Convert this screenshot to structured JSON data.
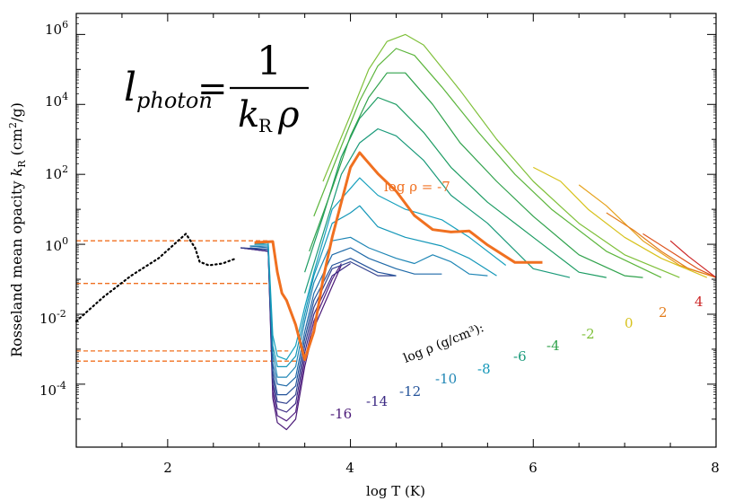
{
  "chart_data": {
    "type": "line",
    "xlabel": "log T (K)",
    "ylabel_parts": [
      "Rosseland mean opacity ",
      "k",
      "R",
      " (cm",
      "2",
      "/g)"
    ],
    "x_ticks": [
      "2",
      "4",
      "6",
      "8"
    ],
    "y_ticks": [
      {
        "base": "10",
        "exp": "6"
      },
      {
        "base": "10",
        "exp": "4"
      },
      {
        "base": "10",
        "exp": "2"
      },
      {
        "base": "10",
        "exp": "0"
      },
      {
        "base": "10",
        "exp": "-2"
      },
      {
        "base": "10",
        "exp": "-4"
      }
    ],
    "xlim": [
      1,
      8
    ],
    "ylim_log10": [
      -5.8,
      6.6
    ],
    "formula": {
      "lhs": "l",
      "lhs_sub": "photon",
      "eq": "=",
      "num": "1",
      "den_k": "k",
      "den_sub": "R",
      "den_rho": "ρ"
    },
    "highlight_label": "log ρ = -7",
    "legend_title": "log ρ (g/cm³):",
    "density_labels": [
      {
        "text": "-16",
        "color": "#4b1a78"
      },
      {
        "text": "-14",
        "color": "#3c2a84"
      },
      {
        "text": "-12",
        "color": "#24539a"
      },
      {
        "text": "-10",
        "color": "#1f86b5"
      },
      {
        "text": "-8",
        "color": "#1497b8"
      },
      {
        "text": "-6",
        "color": "#1a9a7a"
      },
      {
        "text": "-4",
        "color": "#30a24c"
      },
      {
        "text": "-2",
        "color": "#7fc03a"
      },
      {
        "text": "0",
        "color": "#d7c21d"
      },
      {
        "text": "2",
        "color": "#e37d1c"
      },
      {
        "text": "4",
        "color": "#cc2727"
      }
    ],
    "highlight_series": {
      "name": "log ρ = -7",
      "color": "#f07020",
      "points": [
        [
          2.95,
          0.05
        ],
        [
          3.15,
          0.08
        ],
        [
          3.2,
          -0.8
        ],
        [
          3.25,
          -1.4
        ],
        [
          3.3,
          -1.6
        ],
        [
          3.4,
          -2.3
        ],
        [
          3.5,
          -3.3
        ],
        [
          3.6,
          -2.5
        ],
        [
          3.7,
          -1.0
        ],
        [
          3.8,
          0.2
        ],
        [
          3.9,
          1.2
        ],
        [
          4.0,
          2.2
        ],
        [
          4.1,
          2.62
        ],
        [
          4.2,
          2.32
        ],
        [
          4.3,
          2.02
        ],
        [
          4.5,
          1.52
        ],
        [
          4.7,
          0.82
        ],
        [
          4.9,
          0.42
        ],
        [
          5.1,
          0.35
        ],
        [
          5.3,
          0.38
        ],
        [
          5.5,
          -0.02
        ],
        [
          5.8,
          -0.52
        ],
        [
          6.1,
          -0.52
        ]
      ]
    },
    "series": [
      {
        "name": "-16",
        "color": "#4b1a78",
        "points": [
          [
            2.8,
            -0.1
          ],
          [
            3.1,
            -0.2
          ],
          [
            3.15,
            -4.4
          ],
          [
            3.2,
            -5.1
          ],
          [
            3.3,
            -5.3
          ],
          [
            3.4,
            -5.0
          ],
          [
            3.5,
            -3.5
          ],
          [
            3.6,
            -2.4
          ],
          [
            3.8,
            -1.2
          ],
          [
            3.9,
            -0.6
          ]
        ]
      },
      {
        "name": "-15",
        "color": "#522183",
        "points": [
          [
            2.8,
            -0.1
          ],
          [
            3.1,
            -0.2
          ],
          [
            3.15,
            -4.2
          ],
          [
            3.2,
            -4.9
          ],
          [
            3.3,
            -5.05
          ],
          [
            3.4,
            -4.8
          ],
          [
            3.5,
            -3.3
          ],
          [
            3.6,
            -2.2
          ],
          [
            3.8,
            -1.0
          ],
          [
            3.9,
            -0.55
          ]
        ]
      },
      {
        "name": "-14",
        "color": "#3c2a84",
        "points": [
          [
            2.8,
            -0.1
          ],
          [
            3.1,
            -0.2
          ],
          [
            3.15,
            -4.0
          ],
          [
            3.2,
            -4.7
          ],
          [
            3.3,
            -4.8
          ],
          [
            3.4,
            -4.55
          ],
          [
            3.5,
            -3.1
          ],
          [
            3.6,
            -2.0
          ],
          [
            3.8,
            -0.9
          ],
          [
            4.0,
            -0.55
          ]
        ]
      },
      {
        "name": "-13",
        "color": "#32428f",
        "points": [
          [
            2.8,
            -0.1
          ],
          [
            3.1,
            -0.15
          ],
          [
            3.15,
            -3.8
          ],
          [
            3.2,
            -4.5
          ],
          [
            3.3,
            -4.55
          ],
          [
            3.4,
            -4.3
          ],
          [
            3.5,
            -2.9
          ],
          [
            3.6,
            -1.8
          ],
          [
            3.8,
            -0.7
          ],
          [
            4.0,
            -0.5
          ],
          [
            4.3,
            -0.9
          ],
          [
            4.5,
            -0.9
          ]
        ]
      },
      {
        "name": "-12",
        "color": "#24539a",
        "points": [
          [
            2.9,
            -0.1
          ],
          [
            3.1,
            -0.15
          ],
          [
            3.15,
            -3.6
          ],
          [
            3.2,
            -4.3
          ],
          [
            3.3,
            -4.3
          ],
          [
            3.4,
            -4.05
          ],
          [
            3.5,
            -2.7
          ],
          [
            3.6,
            -1.6
          ],
          [
            3.8,
            -0.6
          ],
          [
            4.0,
            -0.4
          ],
          [
            4.3,
            -0.8
          ],
          [
            4.5,
            -0.9
          ]
        ]
      },
      {
        "name": "-11",
        "color": "#1f6aa8",
        "points": [
          [
            2.9,
            -0.05
          ],
          [
            3.1,
            -0.1
          ],
          [
            3.15,
            -3.4
          ],
          [
            3.2,
            -4.0
          ],
          [
            3.3,
            -4.05
          ],
          [
            3.4,
            -3.8
          ],
          [
            3.5,
            -2.5
          ],
          [
            3.6,
            -1.4
          ],
          [
            3.8,
            -0.3
          ],
          [
            4.0,
            -0.1
          ],
          [
            4.2,
            -0.4
          ],
          [
            4.5,
            -0.7
          ],
          [
            4.7,
            -0.85
          ],
          [
            5.0,
            -0.85
          ]
        ]
      },
      {
        "name": "-10",
        "color": "#1f86b5",
        "points": [
          [
            2.9,
            -0.05
          ],
          [
            3.1,
            -0.05
          ],
          [
            3.15,
            -3.1
          ],
          [
            3.2,
            -3.8
          ],
          [
            3.3,
            -3.8
          ],
          [
            3.4,
            -3.5
          ],
          [
            3.5,
            -2.2
          ],
          [
            3.6,
            -1.1
          ],
          [
            3.8,
            0.1
          ],
          [
            4.0,
            0.2
          ],
          [
            4.2,
            -0.1
          ],
          [
            4.5,
            -0.4
          ],
          [
            4.7,
            -0.55
          ],
          [
            4.9,
            -0.3
          ],
          [
            5.1,
            -0.5
          ],
          [
            5.3,
            -0.85
          ],
          [
            5.5,
            -0.9
          ]
        ]
      },
      {
        "name": "-9",
        "color": "#1497b8",
        "points": [
          [
            2.95,
            0.0
          ],
          [
            3.1,
            0.0
          ],
          [
            3.15,
            -2.9
          ],
          [
            3.2,
            -3.5
          ],
          [
            3.3,
            -3.5
          ],
          [
            3.4,
            -3.2
          ],
          [
            3.5,
            -2.0
          ],
          [
            3.6,
            -0.9
          ],
          [
            3.8,
            0.6
          ],
          [
            4.0,
            0.9
          ],
          [
            4.1,
            1.1
          ],
          [
            4.3,
            0.5
          ],
          [
            4.6,
            0.2
          ],
          [
            5.0,
            -0.05
          ],
          [
            5.3,
            -0.4
          ],
          [
            5.6,
            -0.9
          ]
        ]
      },
      {
        "name": "-8",
        "color": "#17a0bd",
        "points": [
          [
            2.95,
            0.0
          ],
          [
            3.1,
            0.05
          ],
          [
            3.15,
            -2.6
          ],
          [
            3.2,
            -3.2
          ],
          [
            3.3,
            -3.3
          ],
          [
            3.4,
            -2.9
          ],
          [
            3.5,
            -1.8
          ],
          [
            3.6,
            -0.8
          ],
          [
            3.8,
            1.0
          ],
          [
            4.0,
            1.6
          ],
          [
            4.1,
            1.9
          ],
          [
            4.3,
            1.4
          ],
          [
            4.6,
            1.0
          ],
          [
            5.0,
            0.7
          ],
          [
            5.3,
            0.2
          ],
          [
            5.7,
            -0.6
          ]
        ]
      },
      {
        "name": "-6",
        "color": "#1a9a7a",
        "points": [
          [
            3.5,
            -1.4
          ],
          [
            3.7,
            0.3
          ],
          [
            3.9,
            2.0
          ],
          [
            4.1,
            2.9
          ],
          [
            4.3,
            3.3
          ],
          [
            4.5,
            3.1
          ],
          [
            4.8,
            2.4
          ],
          [
            5.1,
            1.4
          ],
          [
            5.5,
            0.6
          ],
          [
            6.0,
            -0.7
          ],
          [
            6.4,
            -0.95
          ]
        ]
      },
      {
        "name": "-5",
        "color": "#1c9c62",
        "points": [
          [
            3.5,
            -0.8
          ],
          [
            3.7,
            0.8
          ],
          [
            3.9,
            2.5
          ],
          [
            4.1,
            3.6
          ],
          [
            4.3,
            4.2
          ],
          [
            4.5,
            4.0
          ],
          [
            4.8,
            3.2
          ],
          [
            5.1,
            2.2
          ],
          [
            5.5,
            1.2
          ],
          [
            6.0,
            0.2
          ],
          [
            6.5,
            -0.8
          ],
          [
            6.8,
            -0.95
          ]
        ]
      },
      {
        "name": "-4",
        "color": "#30a24c",
        "points": [
          [
            3.55,
            -0.2
          ],
          [
            3.8,
            1.6
          ],
          [
            4.0,
            3.1
          ],
          [
            4.2,
            4.2
          ],
          [
            4.4,
            4.9
          ],
          [
            4.6,
            4.9
          ],
          [
            4.9,
            4.0
          ],
          [
            5.2,
            2.9
          ],
          [
            5.6,
            1.8
          ],
          [
            6.0,
            0.8
          ],
          [
            6.5,
            -0.3
          ],
          [
            7.0,
            -0.9
          ],
          [
            7.2,
            -0.95
          ]
        ]
      },
      {
        "name": "-3",
        "color": "#5cb53c",
        "points": [
          [
            3.6,
            0.8
          ],
          [
            3.9,
            2.8
          ],
          [
            4.1,
            4.1
          ],
          [
            4.3,
            5.1
          ],
          [
            4.5,
            5.6
          ],
          [
            4.7,
            5.4
          ],
          [
            5.0,
            4.5
          ],
          [
            5.4,
            3.2
          ],
          [
            5.8,
            2.0
          ],
          [
            6.2,
            1.0
          ],
          [
            6.8,
            -0.2
          ],
          [
            7.4,
            -0.95
          ]
        ]
      },
      {
        "name": "-2",
        "color": "#7fc03a",
        "points": [
          [
            3.7,
            1.8
          ],
          [
            4.0,
            3.7
          ],
          [
            4.2,
            5.0
          ],
          [
            4.4,
            5.8
          ],
          [
            4.6,
            6.0
          ],
          [
            4.8,
            5.7
          ],
          [
            5.2,
            4.4
          ],
          [
            5.6,
            3.0
          ],
          [
            6.0,
            1.8
          ],
          [
            6.5,
            0.6
          ],
          [
            7.0,
            -0.3
          ],
          [
            7.6,
            -0.95
          ]
        ]
      },
      {
        "name": "0",
        "color": "#d7c21d",
        "points": [
          [
            6.0,
            2.2
          ],
          [
            6.3,
            1.8
          ],
          [
            6.6,
            1.0
          ],
          [
            7.0,
            0.2
          ],
          [
            7.4,
            -0.4
          ],
          [
            7.9,
            -0.95
          ]
        ]
      },
      {
        "name": "1",
        "color": "#e6a21d",
        "points": [
          [
            6.5,
            1.7
          ],
          [
            6.8,
            1.1
          ],
          [
            7.2,
            0.1
          ],
          [
            7.6,
            -0.6
          ],
          [
            8.0,
            -0.95
          ]
        ]
      },
      {
        "name": "2",
        "color": "#e37d1c",
        "points": [
          [
            6.8,
            0.9
          ],
          [
            7.1,
            0.4
          ],
          [
            7.4,
            -0.2
          ],
          [
            7.7,
            -0.7
          ],
          [
            8.0,
            -0.95
          ]
        ]
      },
      {
        "name": "3",
        "color": "#dd5620",
        "points": [
          [
            7.2,
            0.3
          ],
          [
            7.5,
            -0.2
          ],
          [
            7.8,
            -0.7
          ],
          [
            8.0,
            -0.95
          ]
        ]
      },
      {
        "name": "4",
        "color": "#cc2727",
        "points": [
          [
            7.5,
            0.1
          ],
          [
            7.7,
            -0.35
          ],
          [
            7.9,
            -0.75
          ],
          [
            8.0,
            -0.95
          ]
        ]
      }
    ],
    "dust_series": {
      "style": "dotted",
      "color": "#000000",
      "points": [
        [
          1.0,
          -2.2
        ],
        [
          1.3,
          -1.5
        ],
        [
          1.6,
          -0.9
        ],
        [
          1.9,
          -0.4
        ],
        [
          2.2,
          0.3
        ],
        [
          2.3,
          -0.1
        ],
        [
          2.35,
          -0.5
        ],
        [
          2.45,
          -0.6
        ],
        [
          2.6,
          -0.55
        ],
        [
          2.75,
          -0.4
        ]
      ]
    },
    "reference_levels_log10": [
      0.1,
      -1.12,
      -3.05,
      -3.34
    ]
  }
}
